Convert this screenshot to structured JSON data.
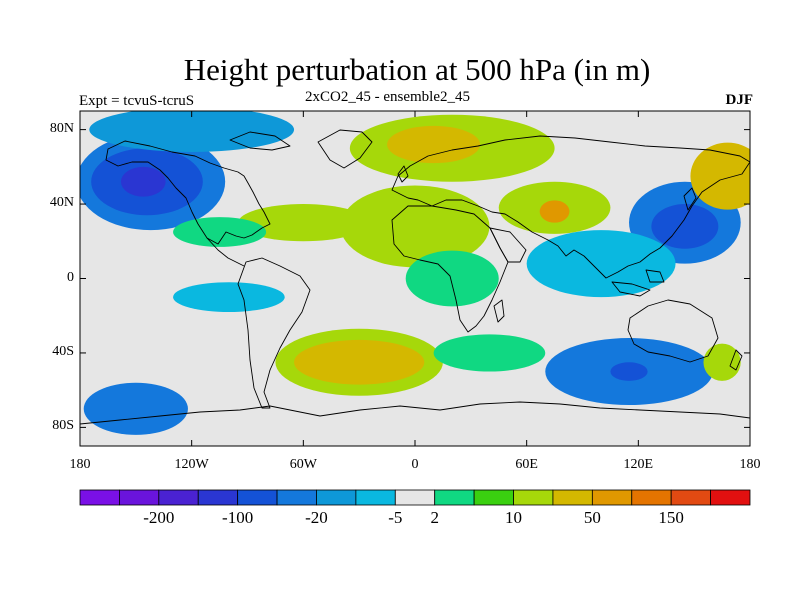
{
  "title": "Height perturbation at 500 hPa (in m)",
  "subtitle_left": "Expt = tcvuS-tcruS",
  "subtitle_center": "2xCO2_45 - ensemble2_45",
  "subtitle_right": "DJF",
  "y_ticks": [
    {
      "lat": 80,
      "label": "80N"
    },
    {
      "lat": 40,
      "label": "40N"
    },
    {
      "lat": 0,
      "label": "0"
    },
    {
      "lat": -40,
      "label": "40S"
    },
    {
      "lat": -80,
      "label": "80S"
    }
  ],
  "x_ticks": [
    {
      "lon": -180,
      "label": "180"
    },
    {
      "lon": -120,
      "label": "120W"
    },
    {
      "lon": -60,
      "label": "60W"
    },
    {
      "lon": 0,
      "label": "0"
    },
    {
      "lon": 60,
      "label": "60E"
    },
    {
      "lon": 120,
      "label": "120E"
    },
    {
      "lon": 180,
      "label": "180"
    }
  ],
  "colorbar": {
    "colors": [
      "#7a10e6",
      "#6a14dc",
      "#4a22d2",
      "#2a36d2",
      "#1452d6",
      "#1478dc",
      "#0e98d8",
      "#0ab8e0",
      "#e6e6e6",
      "#10d882",
      "#3ad010",
      "#a6d80a",
      "#d4b800",
      "#e09800",
      "#e47400",
      "#e24a12",
      "#e21010"
    ],
    "labels": [
      {
        "after_box": 2,
        "text": "-200"
      },
      {
        "after_box": 4,
        "text": "-100"
      },
      {
        "after_box": 6,
        "text": "-20"
      },
      {
        "after_box": 8,
        "text": "-5"
      },
      {
        "after_box": 9,
        "text": "2"
      },
      {
        "after_box": 11,
        "text": "10"
      },
      {
        "after_box": 13,
        "text": "50"
      },
      {
        "after_box": 15,
        "text": "150"
      }
    ]
  },
  "map": {
    "background": "#e6e6e6",
    "lon_range": [
      -180,
      180
    ],
    "lat_range": [
      -90,
      90
    ],
    "anomalies": [
      {
        "lon": -142,
        "lat": 52,
        "rlon": 40,
        "rlat": 26,
        "color": "#1478dc"
      },
      {
        "lon": -144,
        "lat": 52,
        "rlon": 30,
        "rlat": 18,
        "color": "#1452d6"
      },
      {
        "lon": -146,
        "lat": 52,
        "rlon": 12,
        "rlat": 8,
        "color": "#2a36d2"
      },
      {
        "lon": -120,
        "lat": 80,
        "rlon": 55,
        "rlat": 12,
        "color": "#0e98d8"
      },
      {
        "lon": -60,
        "lat": 30,
        "rlon": 35,
        "rlat": 10,
        "color": "#a6d80a"
      },
      {
        "lon": -105,
        "lat": 25,
        "rlon": 25,
        "rlat": 8,
        "color": "#10d882"
      },
      {
        "lon": 20,
        "lat": 70,
        "rlon": 55,
        "rlat": 18,
        "color": "#a6d80a"
      },
      {
        "lon": 10,
        "lat": 72,
        "rlon": 25,
        "rlat": 10,
        "color": "#d4b800"
      },
      {
        "lon": 75,
        "lat": 38,
        "rlon": 30,
        "rlat": 14,
        "color": "#a6d80a"
      },
      {
        "lon": 75,
        "lat": 36,
        "rlon": 8,
        "rlat": 6,
        "color": "#e09800"
      },
      {
        "lon": 0,
        "lat": 28,
        "rlon": 40,
        "rlat": 22,
        "color": "#a6d80a"
      },
      {
        "lon": 145,
        "lat": 30,
        "rlon": 30,
        "rlat": 22,
        "color": "#1478dc"
      },
      {
        "lon": 145,
        "lat": 28,
        "rlon": 18,
        "rlat": 12,
        "color": "#1452d6"
      },
      {
        "lon": 168,
        "lat": 55,
        "rlon": 20,
        "rlat": 18,
        "color": "#d4b800"
      },
      {
        "lon": 100,
        "lat": 8,
        "rlon": 40,
        "rlat": 18,
        "color": "#0ab8e0"
      },
      {
        "lon": -30,
        "lat": -45,
        "rlon": 45,
        "rlat": 18,
        "color": "#a6d80a"
      },
      {
        "lon": -30,
        "lat": -45,
        "rlon": 35,
        "rlat": 12,
        "color": "#d4b800"
      },
      {
        "lon": -150,
        "lat": -70,
        "rlon": 28,
        "rlat": 14,
        "color": "#1478dc"
      },
      {
        "lon": 115,
        "lat": -50,
        "rlon": 45,
        "rlat": 18,
        "color": "#1478dc"
      },
      {
        "lon": 115,
        "lat": -50,
        "rlon": 10,
        "rlat": 5,
        "color": "#1452d6"
      },
      {
        "lon": 165,
        "lat": -45,
        "rlon": 10,
        "rlat": 10,
        "color": "#a6d80a"
      },
      {
        "lon": 40,
        "lat": -40,
        "rlon": 30,
        "rlat": 10,
        "color": "#10d882"
      },
      {
        "lon": 20,
        "lat": 0,
        "rlon": 25,
        "rlat": 15,
        "color": "#10d882"
      },
      {
        "lon": -100,
        "lat": -10,
        "rlon": 30,
        "rlat": 8,
        "color": "#0ab8e0"
      }
    ]
  }
}
